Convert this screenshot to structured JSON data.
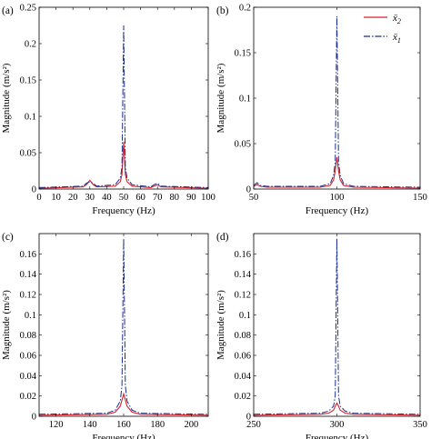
{
  "chart_data": [
    {
      "panel": "(a)",
      "type": "line",
      "xlabel": "Frequency (Hz)",
      "ylabel": "Magnitude (m/s²)",
      "xlim": [
        0,
        100
      ],
      "ylim": [
        0,
        0.25
      ],
      "xticks": [
        0,
        10,
        20,
        30,
        40,
        50,
        60,
        70,
        80,
        90,
        100
      ],
      "yticks": [
        0,
        0.05,
        0.1,
        0.15,
        0.2,
        0.25
      ],
      "series": [
        {
          "color": "#d4202c",
          "dash": "solid",
          "x": [
            0,
            26,
            28,
            30,
            32,
            34,
            45,
            48,
            49,
            50,
            51,
            52,
            55,
            66,
            68,
            70,
            72,
            100
          ],
          "y": [
            0.001,
            0.003,
            0.006,
            0.012,
            0.006,
            0.003,
            0.004,
            0.01,
            0.02,
            0.065,
            0.02,
            0.01,
            0.004,
            0.002,
            0.004,
            0.006,
            0.003,
            0.001
          ]
        },
        {
          "color": "#1a2f8c",
          "dash": "dashdot",
          "x": [
            0,
            26,
            28,
            30,
            32,
            34,
            45,
            48,
            49,
            50,
            51,
            52,
            55,
            66,
            68,
            70,
            72,
            100
          ],
          "y": [
            0.002,
            0.004,
            0.008,
            0.01,
            0.008,
            0.004,
            0.006,
            0.015,
            0.03,
            0.225,
            0.03,
            0.015,
            0.006,
            0.003,
            0.006,
            0.008,
            0.004,
            0.002
          ]
        }
      ]
    },
    {
      "panel": "(b)",
      "type": "line",
      "xlabel": "Frequency (Hz)",
      "ylabel": "Magnitude (m/s²)",
      "xlim": [
        50,
        150
      ],
      "ylim": [
        0,
        0.2
      ],
      "xticks": [
        50,
        100,
        150
      ],
      "yticks": [
        0,
        0.05,
        0.1,
        0.15,
        0.2
      ],
      "series": [
        {
          "color": "#d4202c",
          "dash": "solid",
          "x": [
            50,
            52,
            54,
            58,
            90,
            96,
            98,
            99,
            100,
            101,
            102,
            104,
            110,
            150
          ],
          "y": [
            0.003,
            0.005,
            0.003,
            0.002,
            0.002,
            0.004,
            0.01,
            0.02,
            0.035,
            0.02,
            0.01,
            0.004,
            0.002,
            0.001
          ]
        },
        {
          "color": "#1a2f8c",
          "dash": "dashdot",
          "x": [
            50,
            52,
            54,
            58,
            90,
            96,
            98,
            99,
            100,
            101,
            102,
            104,
            110,
            150
          ],
          "y": [
            0.004,
            0.007,
            0.004,
            0.003,
            0.003,
            0.006,
            0.015,
            0.03,
            0.19,
            0.03,
            0.015,
            0.006,
            0.003,
            0.002
          ]
        }
      ],
      "legend": {
        "placement": "top-right",
        "entries": [
          "ẍ",
          "ẍ"
        ],
        "subscripts": [
          "2",
          "1"
        ]
      }
    },
    {
      "panel": "(c)",
      "type": "line",
      "xlabel": "Frequency (Hz)",
      "ylabel": "Magnitude (m/s²)",
      "xlim": [
        110,
        210
      ],
      "ylim": [
        0,
        0.18
      ],
      "xticks": [
        120,
        140,
        160,
        180,
        200
      ],
      "yticks": [
        0,
        0.02,
        0.04,
        0.06,
        0.08,
        0.1,
        0.12,
        0.14,
        0.16
      ],
      "series": [
        {
          "color": "#d4202c",
          "dash": "solid",
          "x": [
            110,
            150,
            155,
            158,
            159,
            160,
            161,
            162,
            165,
            170,
            210
          ],
          "y": [
            0.001,
            0.002,
            0.004,
            0.01,
            0.016,
            0.022,
            0.016,
            0.01,
            0.004,
            0.002,
            0.001
          ]
        },
        {
          "color": "#1a2f8c",
          "dash": "dashdot",
          "x": [
            110,
            150,
            155,
            158,
            159,
            160,
            161,
            162,
            165,
            170,
            210
          ],
          "y": [
            0.002,
            0.003,
            0.006,
            0.015,
            0.03,
            0.175,
            0.03,
            0.015,
            0.006,
            0.003,
            0.002
          ]
        }
      ]
    },
    {
      "panel": "(d)",
      "type": "line",
      "xlabel": "Frequency (Hz)",
      "ylabel": "Magnitude (m/s²)",
      "xlim": [
        250,
        350
      ],
      "ylim": [
        0,
        0.18
      ],
      "xticks": [
        250,
        300,
        350
      ],
      "yticks": [
        0,
        0.02,
        0.04,
        0.06,
        0.08,
        0.1,
        0.12,
        0.14,
        0.16
      ],
      "series": [
        {
          "color": "#d4202c",
          "dash": "solid",
          "x": [
            250,
            290,
            295,
            298,
            299,
            300,
            301,
            302,
            305,
            310,
            350
          ],
          "y": [
            0.001,
            0.002,
            0.003,
            0.006,
            0.01,
            0.013,
            0.01,
            0.006,
            0.003,
            0.002,
            0.001
          ]
        },
        {
          "color": "#1a2f8c",
          "dash": "dashdot",
          "x": [
            250,
            290,
            295,
            298,
            299,
            300,
            301,
            302,
            305,
            310,
            350
          ],
          "y": [
            0.002,
            0.003,
            0.005,
            0.01,
            0.02,
            0.175,
            0.02,
            0.01,
            0.005,
            0.003,
            0.002
          ]
        }
      ]
    }
  ]
}
